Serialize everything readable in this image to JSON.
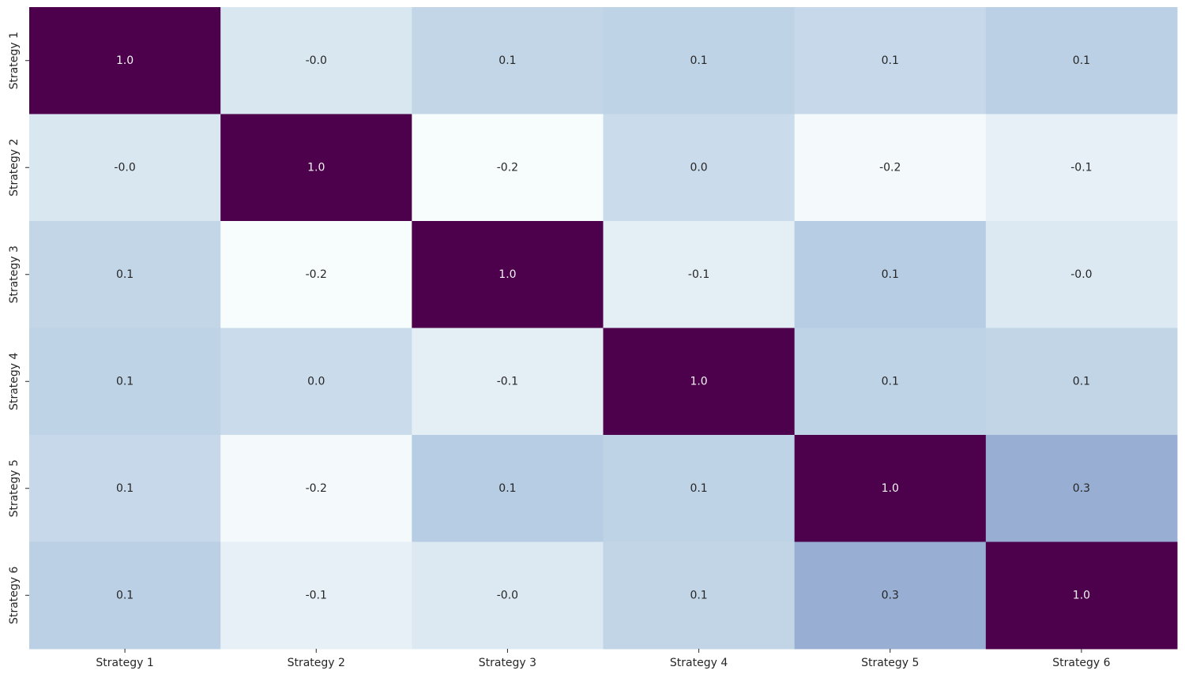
{
  "chart_data": {
    "type": "heatmap",
    "x_labels": [
      "Strategy 1",
      "Strategy 2",
      "Strategy 3",
      "Strategy 4",
      "Strategy 5",
      "Strategy 6"
    ],
    "y_labels": [
      "Strategy 1",
      "Strategy 2",
      "Strategy 3",
      "Strategy 4",
      "Strategy 5",
      "Strategy 6"
    ],
    "values": [
      [
        1.0,
        -0.02,
        0.08,
        0.1,
        0.07,
        0.12
      ],
      [
        -0.02,
        1.0,
        -0.2,
        0.05,
        -0.18,
        -0.09
      ],
      [
        0.08,
        -0.2,
        1.0,
        -0.07,
        0.14,
        -0.03
      ],
      [
        0.1,
        0.05,
        -0.07,
        1.0,
        0.1,
        0.09
      ],
      [
        0.07,
        -0.18,
        0.14,
        0.1,
        1.0,
        0.3
      ],
      [
        0.12,
        -0.09,
        -0.03,
        0.09,
        0.3,
        1.0
      ]
    ],
    "annotations": [
      [
        "1.0",
        "-0.0",
        "0.1",
        "0.1",
        "0.1",
        "0.1"
      ],
      [
        "-0.0",
        "1.0",
        "-0.2",
        "0.0",
        "-0.2",
        "-0.1"
      ],
      [
        "0.1",
        "-0.2",
        "1.0",
        "-0.1",
        "0.1",
        "-0.0"
      ],
      [
        "0.1",
        "0.0",
        "-0.1",
        "1.0",
        "0.1",
        "0.1"
      ],
      [
        "0.1",
        "-0.2",
        "0.1",
        "0.1",
        "1.0",
        "0.3"
      ],
      [
        "0.1",
        "-0.1",
        "-0.0",
        "0.1",
        "0.3",
        "1.0"
      ]
    ],
    "colormap": "BuPu",
    "vmin": -0.2,
    "vmax": 1.0,
    "colorbar": false,
    "annotation_colors": {
      "dark_cell_text": "#f5f5f5",
      "light_cell_text": "#262626"
    },
    "title": "",
    "xlabel": "",
    "ylabel": ""
  }
}
